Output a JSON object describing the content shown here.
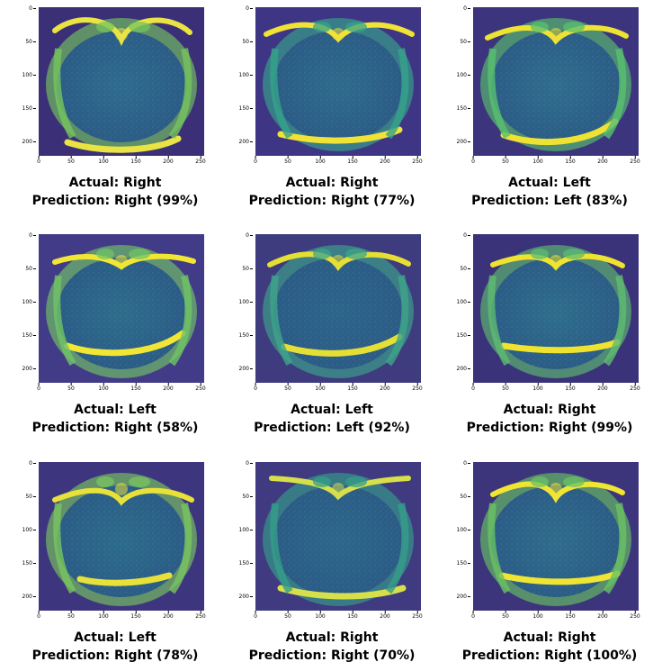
{
  "axes": {
    "x_ticks": [
      "0",
      "50",
      "100",
      "150",
      "200",
      "250"
    ],
    "y_ticks": [
      "0",
      "50",
      "100",
      "150",
      "200"
    ]
  },
  "panels": [
    {
      "actual": "Actual: Right",
      "prediction": "Prediction: Right (99%)"
    },
    {
      "actual": "Actual: Right",
      "prediction": "Prediction: Right (77%)"
    },
    {
      "actual": "Actual: Left",
      "prediction": "Prediction: Left (83%)"
    },
    {
      "actual": "Actual: Left",
      "prediction": "Prediction: Right (58%)"
    },
    {
      "actual": "Actual: Left",
      "prediction": "Prediction: Left (92%)"
    },
    {
      "actual": "Actual: Right",
      "prediction": "Prediction: Right (99%)"
    },
    {
      "actual": "Actual: Left",
      "prediction": "Prediction: Right (78%)"
    },
    {
      "actual": "Actual: Right",
      "prediction": "Prediction: Right (70%)"
    },
    {
      "actual": "Actual: Right",
      "prediction": "Prediction: Right (100%)"
    }
  ],
  "colors": {
    "background_scan": "#3b2f78",
    "mid_tissue": "#2c8b8b",
    "bright_tissue": "#d8e23a",
    "bone_rim": "#f0e21d"
  }
}
